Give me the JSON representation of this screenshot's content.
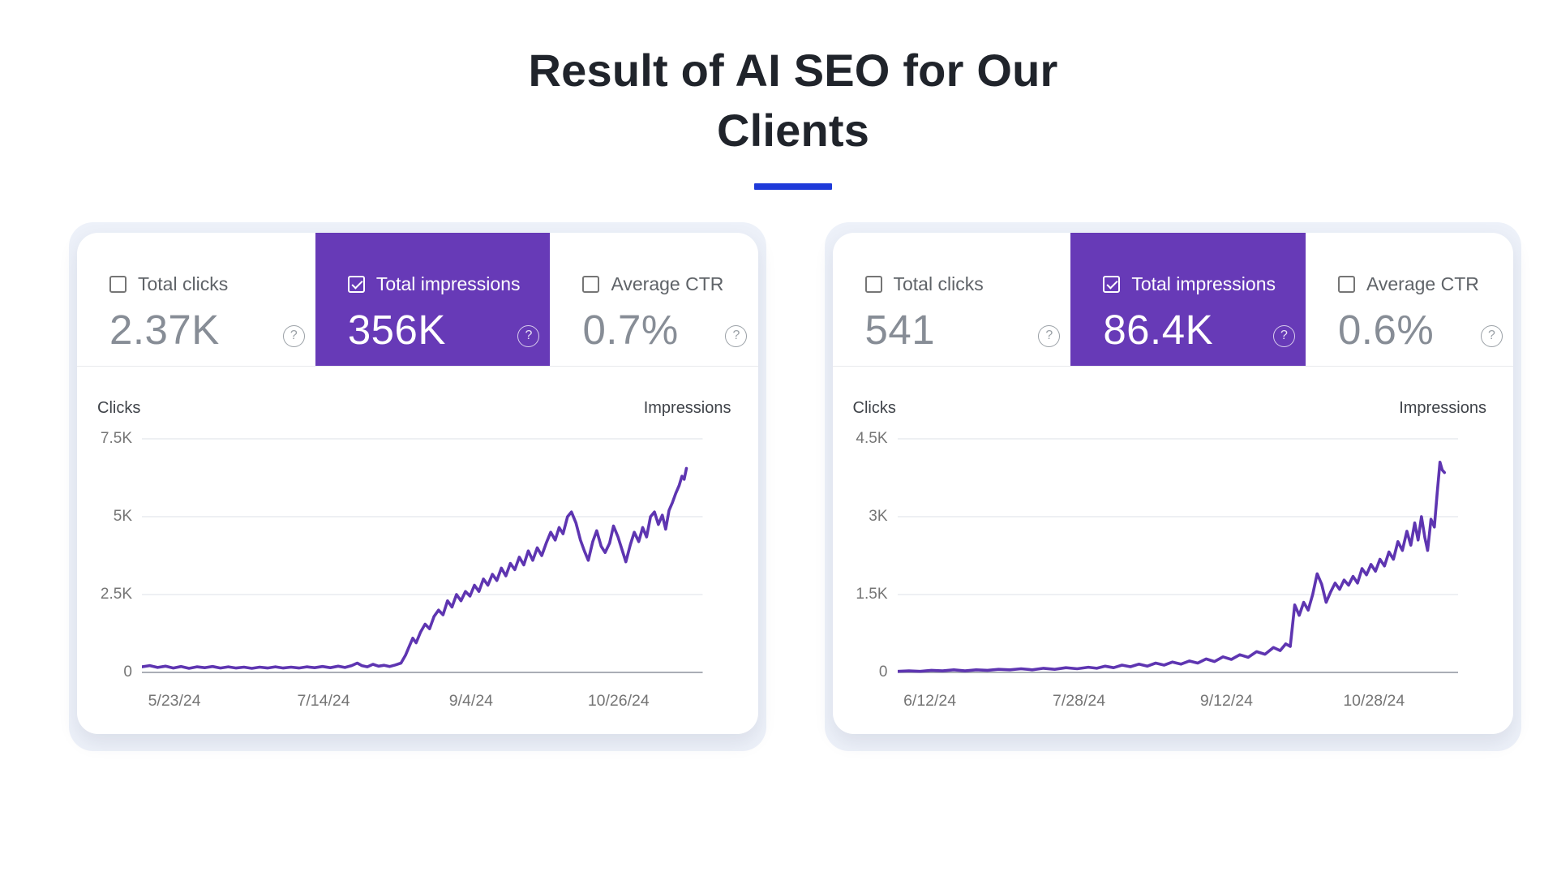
{
  "page": {
    "title": "Result of AI SEO for Our Clients",
    "title_line1": "Result of AI SEO for Our",
    "title_line2": "Clients",
    "accent_underline_color": "#1e3ad9"
  },
  "icons": {
    "help_glyph": "?",
    "checkbox_checked": "checked",
    "checkbox_unchecked": "unchecked"
  },
  "colors": {
    "selected_tile_purple": "#673ab7",
    "line_purple": "#5e35b1",
    "panel_background": "#edf1f9",
    "card_background": "#ffffff",
    "metric_value_gray": "#878d96",
    "metric_label_gray": "#5f6368",
    "axis_text_gray": "#757575"
  },
  "charts": [
    {
      "metrics": [
        {
          "label": "Total clicks",
          "value": "2.37K",
          "checked": false,
          "selected": false
        },
        {
          "label": "Total impressions",
          "value": "356K",
          "checked": true,
          "selected": true
        },
        {
          "label": "Average CTR",
          "value": "0.7%",
          "checked": false,
          "selected": false
        }
      ],
      "axis_left_label": "Clicks",
      "axis_right_label": "Impressions"
    },
    {
      "metrics": [
        {
          "label": "Total clicks",
          "value": "541",
          "checked": false,
          "selected": false
        },
        {
          "label": "Total impressions",
          "value": "86.4K",
          "checked": true,
          "selected": true
        },
        {
          "label": "Average CTR",
          "value": "0.6%",
          "checked": false,
          "selected": false
        }
      ],
      "axis_left_label": "Clicks",
      "axis_right_label": "Impressions"
    }
  ],
  "chart_data": [
    {
      "type": "line",
      "title": "",
      "selected_metric": "Total impressions",
      "left_axis_title": "Clicks",
      "right_axis_title": "Impressions",
      "summary": {
        "total_clicks": "2.37K",
        "total_impressions": "356K",
        "average_ctr": "0.7%"
      },
      "grid": true,
      "y_axis": {
        "unit": "K impressions",
        "max": 7.5,
        "ticks": [
          {
            "label": "7.5K",
            "value": 7.5
          },
          {
            "label": "5K",
            "value": 5
          },
          {
            "label": "2.5K",
            "value": 2.5
          },
          {
            "label": "0",
            "value": 0
          }
        ]
      },
      "x_axis": {
        "ticks": [
          {
            "label": "5/23/24",
            "pos_pct": 5.8
          },
          {
            "label": "7/14/24",
            "pos_pct": 32.4
          },
          {
            "label": "9/4/24",
            "pos_pct": 58.7
          },
          {
            "label": "10/26/24",
            "pos_pct": 85
          }
        ]
      },
      "series": [
        {
          "name": "Total impressions",
          "color": "#5e35b1",
          "points": [
            [
              0,
              0.18
            ],
            [
              1.4,
              0.22
            ],
            [
              2.8,
              0.16
            ],
            [
              4.2,
              0.2
            ],
            [
              5.6,
              0.14
            ],
            [
              7,
              0.19
            ],
            [
              8.4,
              0.13
            ],
            [
              9.8,
              0.18
            ],
            [
              11.2,
              0.15
            ],
            [
              12.6,
              0.19
            ],
            [
              14,
              0.14
            ],
            [
              15.4,
              0.18
            ],
            [
              16.8,
              0.14
            ],
            [
              18.2,
              0.17
            ],
            [
              19.6,
              0.13
            ],
            [
              21,
              0.17
            ],
            [
              22.4,
              0.14
            ],
            [
              23.8,
              0.18
            ],
            [
              25.2,
              0.14
            ],
            [
              26.6,
              0.17
            ],
            [
              28,
              0.14
            ],
            [
              29.4,
              0.18
            ],
            [
              30.8,
              0.15
            ],
            [
              32.2,
              0.19
            ],
            [
              33.6,
              0.15
            ],
            [
              35,
              0.2
            ],
            [
              36.2,
              0.16
            ],
            [
              37.4,
              0.22
            ],
            [
              38.4,
              0.3
            ],
            [
              39.2,
              0.22
            ],
            [
              40.2,
              0.18
            ],
            [
              41.2,
              0.26
            ],
            [
              42.2,
              0.2
            ],
            [
              43.2,
              0.23
            ],
            [
              44.2,
              0.19
            ],
            [
              45.2,
              0.24
            ],
            [
              46.2,
              0.3
            ],
            [
              47,
              0.55
            ],
            [
              47.7,
              0.85
            ],
            [
              48.3,
              1.1
            ],
            [
              48.9,
              0.95
            ],
            [
              49.7,
              1.3
            ],
            [
              50.5,
              1.55
            ],
            [
              51.3,
              1.4
            ],
            [
              52.1,
              1.8
            ],
            [
              52.9,
              2.0
            ],
            [
              53.7,
              1.85
            ],
            [
              54.5,
              2.3
            ],
            [
              55.3,
              2.1
            ],
            [
              56.1,
              2.5
            ],
            [
              56.9,
              2.3
            ],
            [
              57.7,
              2.6
            ],
            [
              58.5,
              2.45
            ],
            [
              59.3,
              2.8
            ],
            [
              60.1,
              2.6
            ],
            [
              60.9,
              3.0
            ],
            [
              61.7,
              2.8
            ],
            [
              62.5,
              3.15
            ],
            [
              63.3,
              2.95
            ],
            [
              64.1,
              3.35
            ],
            [
              64.9,
              3.1
            ],
            [
              65.7,
              3.5
            ],
            [
              66.5,
              3.3
            ],
            [
              67.3,
              3.7
            ],
            [
              68.1,
              3.45
            ],
            [
              68.9,
              3.9
            ],
            [
              69.7,
              3.6
            ],
            [
              70.5,
              4.0
            ],
            [
              71.3,
              3.75
            ],
            [
              72.1,
              4.15
            ],
            [
              72.9,
              4.5
            ],
            [
              73.7,
              4.25
            ],
            [
              74.4,
              4.65
            ],
            [
              75.1,
              4.45
            ],
            [
              75.9,
              5.0
            ],
            [
              76.6,
              5.15
            ],
            [
              77.4,
              4.8
            ],
            [
              78.2,
              4.25
            ],
            [
              78.9,
              3.9
            ],
            [
              79.6,
              3.6
            ],
            [
              80.4,
              4.2
            ],
            [
              81.1,
              4.55
            ],
            [
              81.9,
              4.05
            ],
            [
              82.6,
              3.85
            ],
            [
              83.4,
              4.15
            ],
            [
              84.1,
              4.7
            ],
            [
              84.9,
              4.35
            ],
            [
              85.6,
              3.95
            ],
            [
              86.3,
              3.55
            ],
            [
              87.1,
              4.1
            ],
            [
              87.8,
              4.5
            ],
            [
              88.6,
              4.2
            ],
            [
              89.3,
              4.65
            ],
            [
              90,
              4.35
            ],
            [
              90.7,
              5.0
            ],
            [
              91.4,
              5.15
            ],
            [
              92.1,
              4.75
            ],
            [
              92.8,
              5.05
            ],
            [
              93.4,
              4.6
            ],
            [
              94,
              5.2
            ],
            [
              94.6,
              5.45
            ],
            [
              95.2,
              5.75
            ],
            [
              95.8,
              6.0
            ],
            [
              96.3,
              6.3
            ],
            [
              96.7,
              6.2
            ],
            [
              97.1,
              6.55
            ]
          ]
        }
      ]
    },
    {
      "type": "line",
      "title": "",
      "selected_metric": "Total impressions",
      "left_axis_title": "Clicks",
      "right_axis_title": "Impressions",
      "summary": {
        "total_clicks": "541",
        "total_impressions": "86.4K",
        "average_ctr": "0.6%"
      },
      "grid": true,
      "y_axis": {
        "unit": "K impressions",
        "max": 4.5,
        "ticks": [
          {
            "label": "4.5K",
            "value": 4.5
          },
          {
            "label": "3K",
            "value": 3
          },
          {
            "label": "1.5K",
            "value": 1.5
          },
          {
            "label": "0",
            "value": 0
          }
        ]
      },
      "x_axis": {
        "ticks": [
          {
            "label": "6/12/24",
            "pos_pct": 5.8
          },
          {
            "label": "7/28/24",
            "pos_pct": 32.4
          },
          {
            "label": "9/12/24",
            "pos_pct": 58.7
          },
          {
            "label": "10/28/24",
            "pos_pct": 85
          }
        ]
      },
      "series": [
        {
          "name": "Total impressions",
          "color": "#5e35b1",
          "points": [
            [
              0,
              0.02
            ],
            [
              2,
              0.03
            ],
            [
              4,
              0.02
            ],
            [
              6,
              0.04
            ],
            [
              8,
              0.03
            ],
            [
              10,
              0.05
            ],
            [
              12,
              0.03
            ],
            [
              14,
              0.05
            ],
            [
              16,
              0.04
            ],
            [
              18,
              0.06
            ],
            [
              20,
              0.05
            ],
            [
              22,
              0.07
            ],
            [
              24,
              0.05
            ],
            [
              26,
              0.08
            ],
            [
              28,
              0.06
            ],
            [
              30,
              0.09
            ],
            [
              32,
              0.07
            ],
            [
              34,
              0.1
            ],
            [
              35.5,
              0.08
            ],
            [
              37,
              0.12
            ],
            [
              38.5,
              0.09
            ],
            [
              40,
              0.14
            ],
            [
              41.5,
              0.11
            ],
            [
              43,
              0.16
            ],
            [
              44.5,
              0.12
            ],
            [
              46,
              0.18
            ],
            [
              47.5,
              0.14
            ],
            [
              49,
              0.2
            ],
            [
              50.5,
              0.16
            ],
            [
              52,
              0.22
            ],
            [
              53.5,
              0.18
            ],
            [
              55,
              0.26
            ],
            [
              56.5,
              0.21
            ],
            [
              58,
              0.3
            ],
            [
              59.5,
              0.25
            ],
            [
              61,
              0.34
            ],
            [
              62.5,
              0.29
            ],
            [
              64,
              0.4
            ],
            [
              65.5,
              0.35
            ],
            [
              67,
              0.48
            ],
            [
              68.2,
              0.42
            ],
            [
              69.2,
              0.55
            ],
            [
              70,
              0.5
            ],
            [
              70.8,
              1.3
            ],
            [
              71.6,
              1.1
            ],
            [
              72.4,
              1.35
            ],
            [
              73.2,
              1.2
            ],
            [
              74,
              1.5
            ],
            [
              74.8,
              1.9
            ],
            [
              75.6,
              1.7
            ],
            [
              76.4,
              1.35
            ],
            [
              77.2,
              1.55
            ],
            [
              78,
              1.72
            ],
            [
              78.8,
              1.6
            ],
            [
              79.6,
              1.78
            ],
            [
              80.4,
              1.68
            ],
            [
              81.2,
              1.85
            ],
            [
              82,
              1.72
            ],
            [
              82.8,
              2.0
            ],
            [
              83.6,
              1.88
            ],
            [
              84.4,
              2.08
            ],
            [
              85.2,
              1.95
            ],
            [
              86,
              2.18
            ],
            [
              86.8,
              2.05
            ],
            [
              87.6,
              2.32
            ],
            [
              88.4,
              2.18
            ],
            [
              89.2,
              2.52
            ],
            [
              90,
              2.35
            ],
            [
              90.8,
              2.72
            ],
            [
              91.5,
              2.45
            ],
            [
              92.2,
              2.88
            ],
            [
              92.8,
              2.55
            ],
            [
              93.4,
              3.0
            ],
            [
              94,
              2.6
            ],
            [
              94.5,
              2.35
            ],
            [
              95.1,
              2.95
            ],
            [
              95.7,
              2.8
            ],
            [
              96.2,
              3.45
            ],
            [
              96.7,
              4.05
            ],
            [
              97.1,
              3.9
            ],
            [
              97.5,
              3.85
            ]
          ]
        }
      ]
    }
  ]
}
